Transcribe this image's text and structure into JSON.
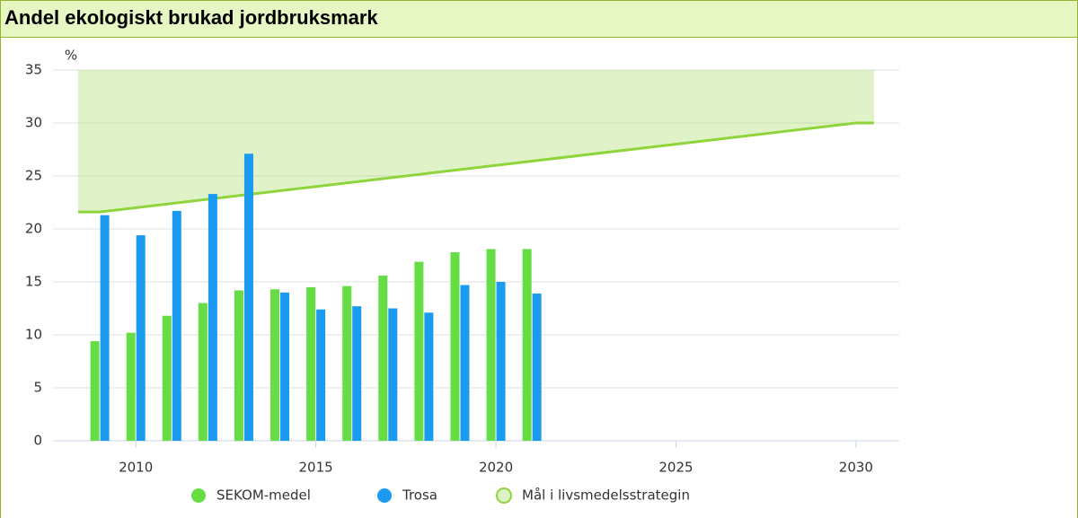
{
  "chart_data": {
    "type": "bar",
    "title": "Andel ekologiskt brukad jordbruksmark",
    "y_label": "%",
    "x": [
      2009,
      2010,
      2011,
      2012,
      2013,
      2014,
      2015,
      2016,
      2017,
      2018,
      2019,
      2020,
      2021
    ],
    "series": [
      {
        "name": "SEKOM-medel",
        "color": "#66dd44",
        "type": "bar",
        "values": [
          9.4,
          10.2,
          11.8,
          13.0,
          14.2,
          14.3,
          14.5,
          14.6,
          15.6,
          16.9,
          17.8,
          18.1,
          18.1
        ]
      },
      {
        "name": "Trosa",
        "color": "#1a9bf0",
        "type": "bar",
        "values": [
          21.3,
          19.4,
          21.7,
          23.3,
          27.1,
          14.0,
          12.4,
          12.7,
          12.5,
          12.1,
          14.7,
          15.0,
          13.9
        ]
      },
      {
        "name": "Mål i livsmedelsstrategin",
        "color": "#8fd43a",
        "type": "area",
        "x": [
          2008.4,
          2009,
          2030,
          2030.5
        ],
        "values": [
          21.6,
          21.6,
          30,
          30
        ]
      }
    ],
    "xlim": [
      2007.7,
      2031.2
    ],
    "xticks": [
      2010,
      2015,
      2020,
      2025,
      2030
    ],
    "ylim": [
      0,
      35
    ],
    "yticks": [
      0,
      5,
      10,
      15,
      20,
      25,
      30,
      35
    ],
    "grid": true,
    "legend": "bottom"
  }
}
